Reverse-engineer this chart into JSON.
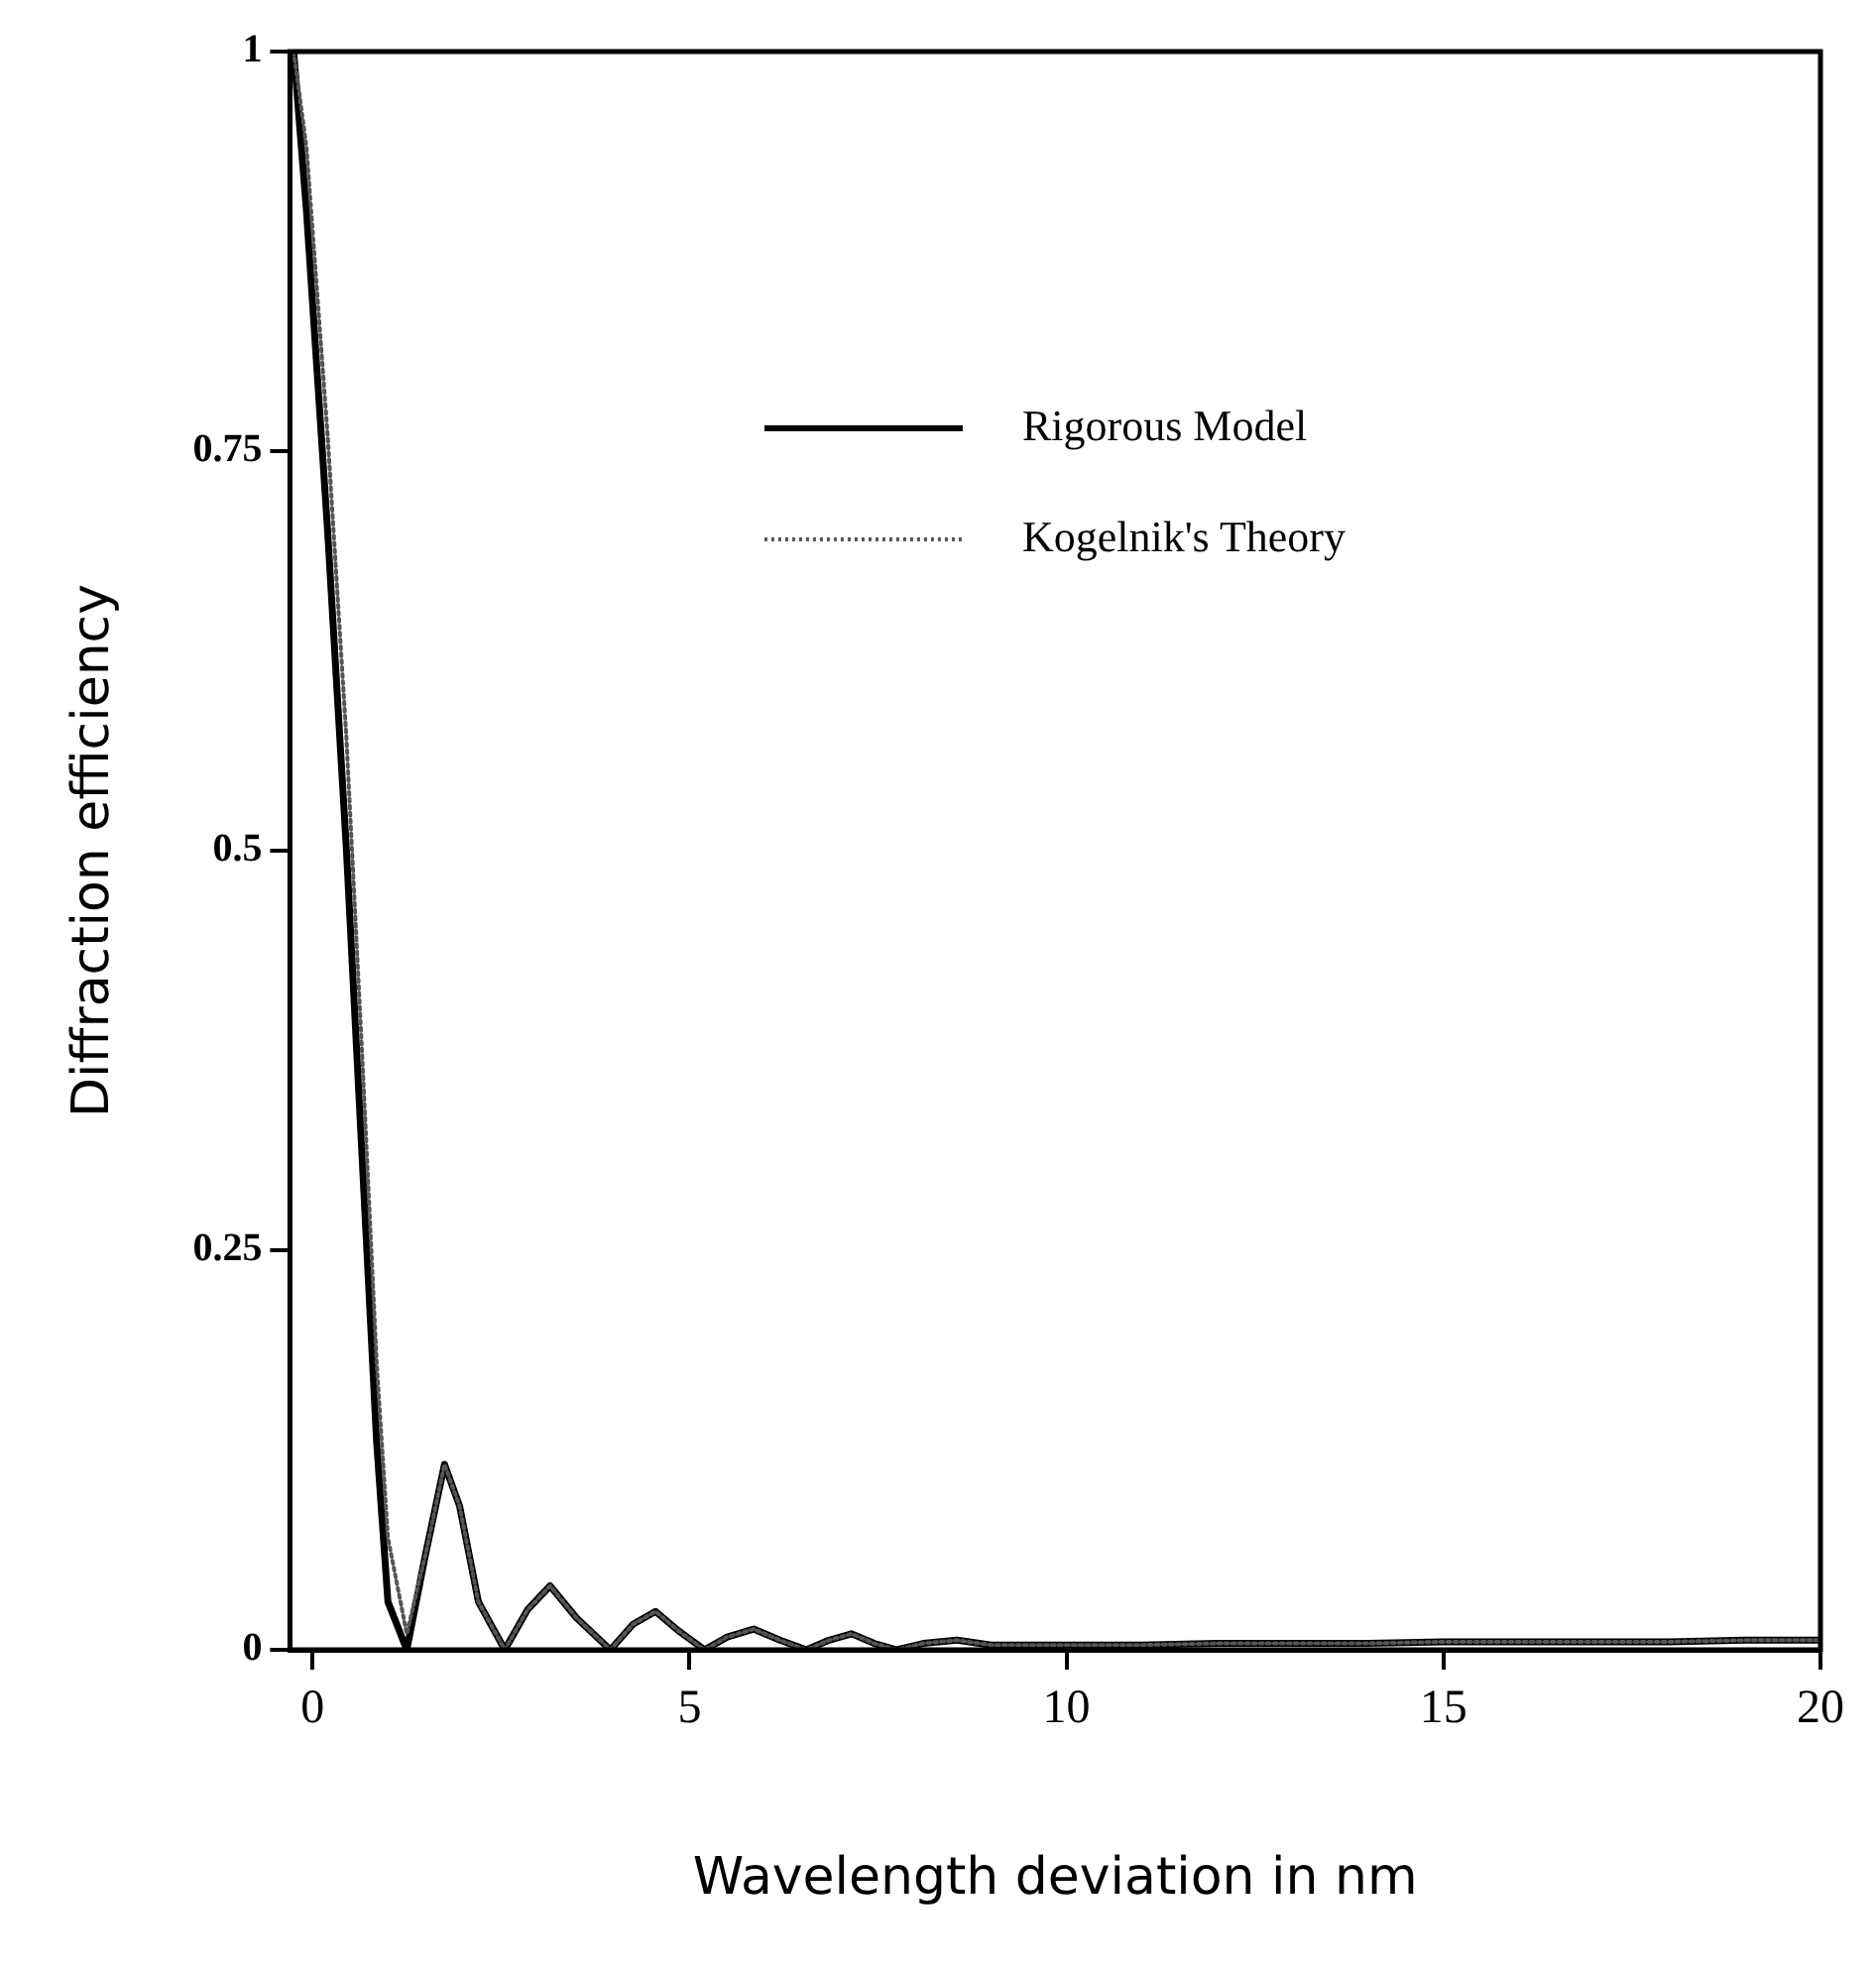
{
  "chart_data": {
    "type": "line",
    "xlabel": "Wavelength deviation in nm",
    "ylabel": "Diffraction efficiency",
    "xlim": [
      -0.3,
      20
    ],
    "xticks": [
      0,
      5,
      10,
      15,
      20
    ],
    "ylim": [
      0,
      1
    ],
    "yticks": [
      0,
      0.25,
      0.5,
      0.75,
      1
    ],
    "grid": false,
    "legend": "top right",
    "marker": "none",
    "series": [
      {
        "name": "Rigorous Model",
        "color": "#000000",
        "line_style": "solid",
        "x": [
          -0.25,
          -0.08,
          0.2,
          0.45,
          0.65,
          0.85,
          1.0,
          1.25,
          1.5,
          1.75,
          1.95,
          2.2,
          2.55,
          2.85,
          3.15,
          3.5,
          3.95,
          4.25,
          4.55,
          4.85,
          5.2,
          5.5,
          5.85,
          6.2,
          6.55,
          6.85,
          7.15,
          7.45,
          7.75,
          8.1,
          8.55,
          9.0,
          10,
          11,
          12,
          13,
          14,
          15,
          16,
          17,
          18,
          19,
          20
        ],
        "values": [
          1,
          0.9,
          0.7,
          0.5,
          0.315,
          0.13,
          0.03,
          0,
          0.06,
          0.116,
          0.09,
          0.03,
          0,
          0.025,
          0.04,
          0.02,
          0,
          0.016,
          0.024,
          0.012,
          0,
          0.008,
          0.013,
          0.006,
          0,
          0.006,
          0.01,
          0.004,
          0,
          0.004,
          0.006,
          0.003,
          0.003,
          0.003,
          0.004,
          0.004,
          0.004,
          0.005,
          0.005,
          0.005,
          0.005,
          0.006,
          0.006
        ]
      },
      {
        "name": "Kogelnik's Theory",
        "color": "#555555",
        "line_style": "dotted",
        "x": [
          -0.25,
          -0.08,
          0.2,
          0.45,
          0.65,
          0.85,
          1.0,
          1.25,
          1.5,
          1.75,
          1.95,
          2.2,
          2.55,
          2.85,
          3.15,
          3.5,
          3.95,
          4.25,
          4.55,
          4.85,
          5.2,
          5.5,
          5.85,
          6.2,
          6.55,
          6.85,
          7.15,
          7.45,
          7.75,
          8.1,
          8.55,
          9.0,
          10,
          11,
          12,
          13,
          14,
          15,
          16,
          17,
          18,
          19,
          20
        ],
        "values": [
          1,
          0.94,
          0.76,
          0.57,
          0.38,
          0.18,
          0.07,
          0.01,
          0.06,
          0.116,
          0.09,
          0.03,
          0,
          0.025,
          0.04,
          0.02,
          0,
          0.016,
          0.024,
          0.012,
          0,
          0.008,
          0.013,
          0.006,
          0,
          0.006,
          0.01,
          0.004,
          0,
          0.004,
          0.006,
          0.003,
          0.003,
          0.003,
          0.004,
          0.004,
          0.004,
          0.005,
          0.005,
          0.005,
          0.005,
          0.006,
          0.006
        ]
      }
    ]
  }
}
